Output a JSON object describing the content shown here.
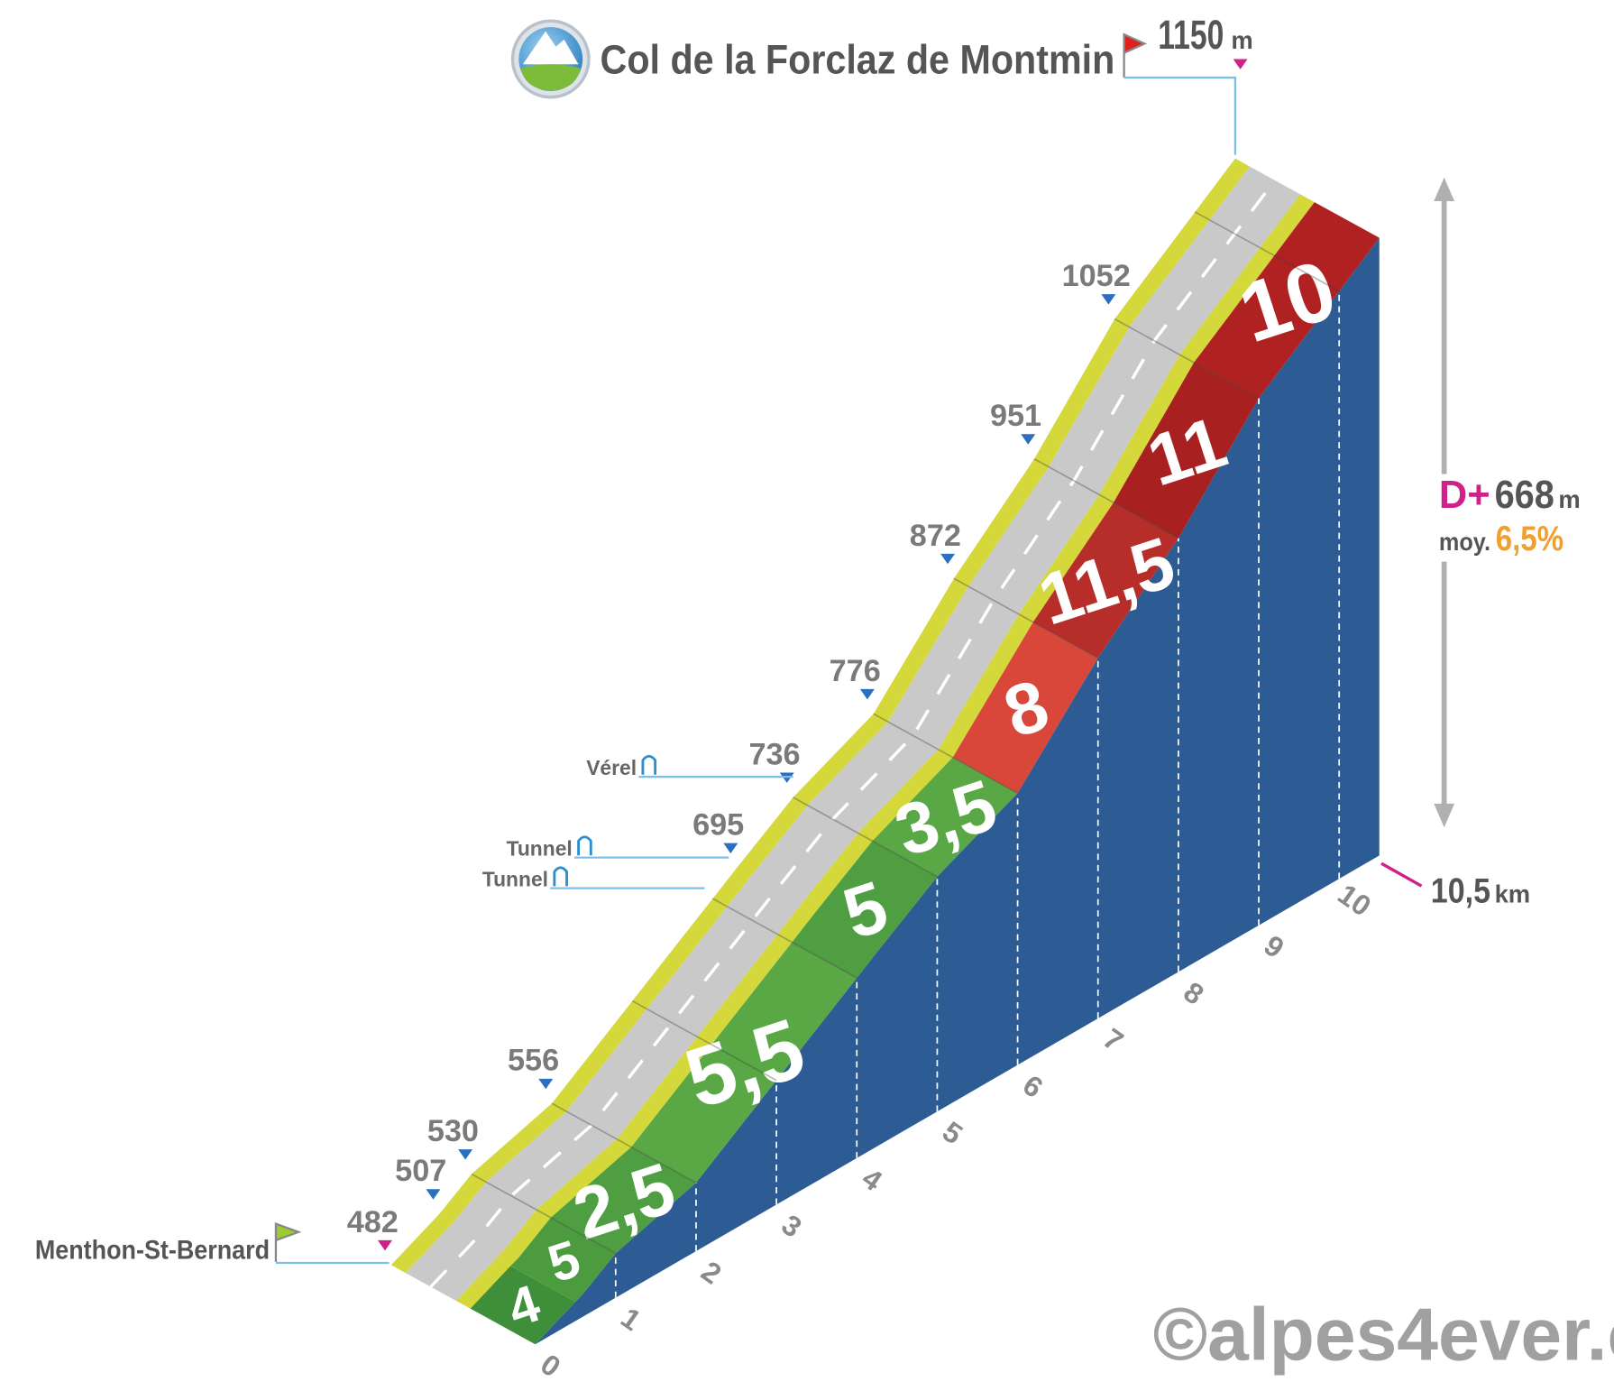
{
  "chart_data": {
    "type": "climb-profile",
    "title": "Col de la Forclaz de Montmin",
    "start": "Menthon-St-Bernard",
    "unit": "m",
    "markers": {
      "x": [
        0,
        0.6,
        1,
        2,
        4.3,
        5,
        6,
        7,
        8,
        9,
        10.5
      ],
      "values": [
        482,
        507,
        530,
        556,
        695,
        736,
        776,
        872,
        951,
        1052,
        1150
      ]
    },
    "gradients": {
      "bins": [
        0,
        0.5,
        1,
        2,
        4,
        5,
        6,
        7,
        8,
        9,
        10.5
      ],
      "values": [
        4,
        5,
        2.5,
        5.5,
        5,
        3.5,
        8,
        11.5,
        11,
        10
      ],
      "value_labels": [
        "4",
        "5",
        "2,5",
        "5,5",
        "5",
        "3,5",
        "8",
        "11,5",
        "11",
        "10"
      ],
      "colors": [
        "#3f8f3a",
        "#4c9c3f",
        "#4f9f42",
        "#5aa845",
        "#4f9f42",
        "#5aa845",
        "#d9473a",
        "#b72d2a",
        "#a82020",
        "#b02222"
      ]
    },
    "xlim": [
      0,
      10.5
    ],
    "xticks": [
      0,
      1,
      2,
      3,
      4,
      5,
      6,
      7,
      8,
      9,
      10
    ],
    "distance": {
      "value": 10.5,
      "label": "10,5",
      "unit": "km"
    },
    "gain": {
      "prefix": "D+",
      "value": 668
    },
    "average": {
      "prefix": "moy.",
      "value": 6.5,
      "label": "6,5%"
    },
    "landmarks": [
      {
        "label": "Vérel",
        "x": 5
      },
      {
        "label": "Tunnel",
        "x": 4.2
      },
      {
        "label": "Tunnel",
        "x": 3.9
      }
    ],
    "credit": "©alpes4ever.c"
  }
}
